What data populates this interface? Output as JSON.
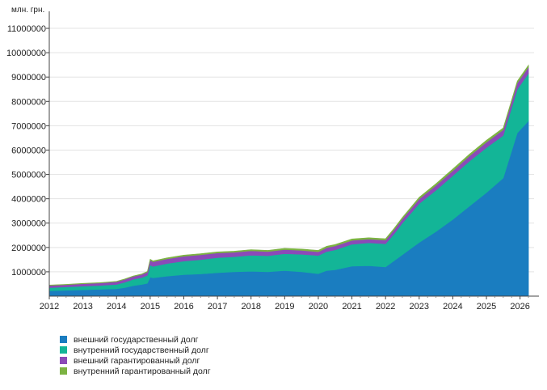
{
  "chart_data": {
    "type": "area",
    "stacked": true,
    "unit_label": "млн. грн.",
    "xlabel": "",
    "ylabel": "",
    "grid": true,
    "legend_position": "bottom-left",
    "ylim": [
      0,
      11500000
    ],
    "yticks": [
      1000000,
      2000000,
      3000000,
      4000000,
      5000000,
      6000000,
      7000000,
      8000000,
      9000000,
      10000000,
      11000000
    ],
    "ytick_labels": [
      "1000000",
      "2000000",
      "3000000",
      "4000000",
      "5000000",
      "6000000",
      "7000000",
      "8000000",
      "9000000",
      "10000000",
      "11000000"
    ],
    "xlim": [
      "2012-01",
      "2026-06"
    ],
    "xticks": [
      "2012",
      "2013",
      "2014",
      "2015",
      "2016",
      "2017",
      "2018",
      "2019",
      "2020",
      "2021",
      "2022",
      "2023",
      "2024",
      "2025",
      "2026"
    ],
    "x": [
      "2012-01",
      "2012-07",
      "2013-01",
      "2013-07",
      "2014-01",
      "2014-04",
      "2014-07",
      "2014-10",
      "2014-12",
      "2015-01",
      "2015-02",
      "2015-07",
      "2016-01",
      "2016-07",
      "2017-01",
      "2017-07",
      "2018-01",
      "2018-07",
      "2019-01",
      "2019-07",
      "2020-01",
      "2020-04",
      "2020-07",
      "2021-01",
      "2021-07",
      "2022-01",
      "2022-04",
      "2022-07",
      "2022-10",
      "2023-01",
      "2023-07",
      "2024-01",
      "2024-07",
      "2025-01",
      "2025-07",
      "2025-12",
      "2026-04"
    ],
    "series": [
      {
        "name": "внешний государственный долг",
        "color": "#1a7dc0",
        "values": [
          220000,
          240000,
          260000,
          280000,
          300000,
          350000,
          430000,
          480000,
          530000,
          780000,
          750000,
          820000,
          880000,
          910000,
          960000,
          1000000,
          1020000,
          1000000,
          1050000,
          1000000,
          920000,
          1050000,
          1080000,
          1230000,
          1250000,
          1200000,
          1450000,
          1700000,
          1950000,
          2200000,
          2650000,
          3150000,
          3700000,
          4250000,
          4850000,
          6700000,
          7200000
        ]
      },
      {
        "name": "внутренний государственный долг",
        "color": "#13b597",
        "values": [
          130000,
          140000,
          150000,
          160000,
          180000,
          220000,
          260000,
          280000,
          320000,
          500000,
          470000,
          520000,
          560000,
          590000,
          620000,
          620000,
          660000,
          660000,
          690000,
          720000,
          750000,
          780000,
          820000,
          900000,
          940000,
          950000,
          1100000,
          1300000,
          1450000,
          1600000,
          1700000,
          1800000,
          1850000,
          1850000,
          1750000,
          1800000,
          1950000
        ]
      },
      {
        "name": "внешний гарантированный долг",
        "color": "#8b4ab8",
        "values": [
          90000,
          90000,
          100000,
          100000,
          110000,
          120000,
          120000,
          130000,
          140000,
          200000,
          190000,
          190000,
          200000,
          200000,
          190000,
          180000,
          180000,
          170000,
          170000,
          160000,
          150000,
          160000,
          160000,
          160000,
          150000,
          150000,
          170000,
          170000,
          180000,
          190000,
          200000,
          200000,
          210000,
          220000,
          230000,
          250000,
          260000
        ]
      },
      {
        "name": "внутренний гарантированный долг",
        "color": "#7cb342",
        "values": [
          15000,
          15000,
          15000,
          16000,
          18000,
          20000,
          22000,
          24000,
          26000,
          40000,
          40000,
          42000,
          45000,
          45000,
          48000,
          48000,
          50000,
          50000,
          55000,
          55000,
          60000,
          60000,
          60000,
          60000,
          60000,
          60000,
          60000,
          65000,
          65000,
          70000,
          70000,
          75000,
          75000,
          80000,
          80000,
          80000,
          80000
        ]
      }
    ]
  }
}
